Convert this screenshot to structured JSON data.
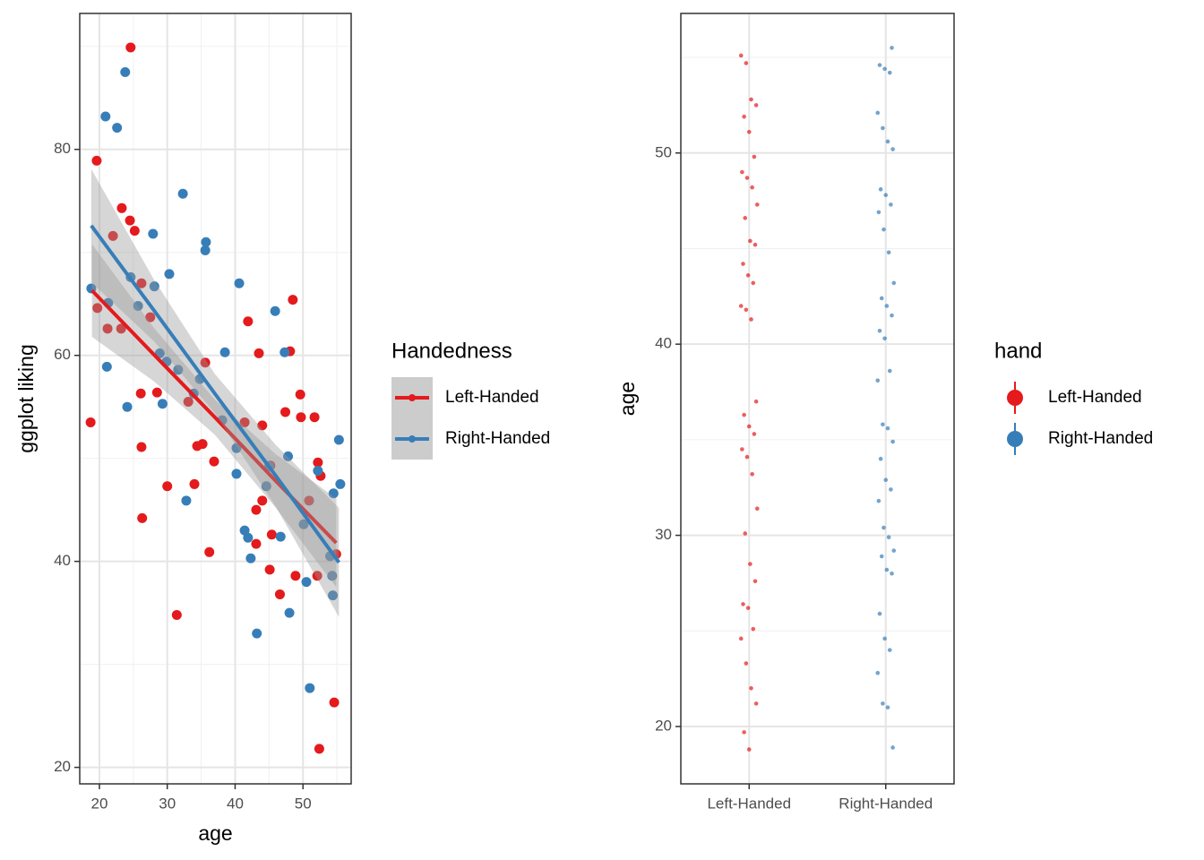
{
  "chart_data": [
    {
      "type": "scatter",
      "xlabel": "age",
      "ylabel": "ggplot liking",
      "xlim": [
        17.1,
        57.1
      ],
      "ylim": [
        18.4,
        93.2
      ],
      "xticks": [
        20,
        30,
        40,
        50
      ],
      "yticks": [
        20,
        40,
        60,
        80
      ],
      "minor_xticks": [
        25,
        35,
        45,
        55
      ],
      "minor_yticks": [
        30,
        50,
        70,
        90
      ],
      "legend_title": "Handedness",
      "series": [
        {
          "name": "Left-Handed",
          "color": "#e41a1c",
          "x": [
            18.7,
            19.6,
            19.7,
            21.2,
            22.0,
            23.2,
            23.3,
            24.5,
            24.6,
            25.2,
            26.1,
            26.2,
            26.2,
            26.3,
            27.5,
            28.5,
            30.0,
            31.4,
            33.1,
            34.0,
            34.4,
            35.2,
            35.6,
            36.2,
            36.9,
            41.4,
            41.9,
            43.1,
            43.1,
            43.5,
            44.0,
            44.0,
            45.1,
            45.2,
            45.4,
            46.6,
            47.4,
            48.1,
            48.5,
            48.9,
            49.6,
            49.7,
            50.9,
            51.7,
            52.1,
            52.2,
            52.4,
            52.6,
            54.6,
            54.9
          ],
          "y": [
            53.5,
            78.9,
            64.6,
            62.6,
            71.6,
            62.6,
            74.3,
            73.1,
            89.9,
            72.1,
            56.3,
            67.0,
            51.1,
            44.2,
            63.7,
            56.4,
            47.3,
            34.8,
            55.5,
            47.5,
            51.2,
            51.4,
            59.3,
            40.9,
            49.7,
            53.5,
            63.3,
            45.0,
            41.7,
            60.2,
            53.2,
            45.9,
            39.2,
            49.3,
            42.6,
            36.8,
            54.5,
            60.4,
            65.4,
            38.6,
            56.2,
            54.0,
            45.9,
            54.0,
            38.6,
            49.6,
            21.8,
            48.3,
            26.3,
            40.7
          ],
          "fit": {
            "x": [
              18.9,
              28,
              37,
              46,
              54.9
            ],
            "y": [
              66.3,
              60.1,
              54.0,
              47.8,
              41.8
            ],
            "lower": [
              61.8,
              57.5,
              52.3,
              45.2,
              37.5
            ],
            "upper": [
              70.8,
              62.7,
              55.7,
              50.4,
              46.1
            ]
          }
        },
        {
          "name": "Right-Handed",
          "color": "#377eb8",
          "x": [
            18.8,
            20.9,
            21.1,
            21.3,
            22.6,
            23.8,
            24.1,
            24.6,
            25.7,
            27.9,
            28.1,
            28.9,
            29.3,
            29.9,
            30.3,
            31.6,
            32.3,
            32.8,
            33.9,
            34.8,
            35.6,
            35.7,
            38.1,
            38.5,
            40.2,
            40.2,
            40.6,
            41.4,
            41.9,
            42.3,
            43.2,
            44.6,
            45.0,
            45.9,
            46.7,
            47.3,
            47.8,
            48.0,
            50.1,
            50.5,
            51.0,
            52.2,
            54.0,
            54.3,
            54.4,
            54.5,
            55.3,
            55.5
          ],
          "y": [
            66.5,
            83.2,
            58.9,
            65.1,
            82.1,
            87.5,
            55.0,
            67.6,
            64.8,
            71.8,
            66.7,
            60.2,
            55.3,
            59.4,
            67.9,
            58.6,
            75.7,
            45.9,
            56.3,
            57.7,
            70.2,
            71.0,
            53.7,
            60.3,
            48.5,
            51.0,
            67.0,
            43.0,
            42.3,
            40.3,
            33.0,
            47.3,
            49.2,
            64.3,
            42.4,
            60.3,
            50.2,
            35.0,
            43.6,
            38.0,
            27.7,
            48.8,
            40.5,
            38.6,
            36.7,
            46.6,
            51.8,
            47.5
          ],
          "fit": {
            "x": [
              18.8,
              28,
              37,
              46,
              55.3
            ],
            "y": [
              72.6,
              64.4,
              56.3,
              48.3,
              39.9
            ],
            "lower": [
              67.1,
              61.4,
              54.4,
              45.3,
              34.6
            ],
            "upper": [
              78.1,
              67.4,
              58.2,
              51.3,
              45.2
            ]
          }
        }
      ]
    },
    {
      "type": "strip",
      "ylabel": "age",
      "categories": [
        "Left-Handed",
        "Right-Handed"
      ],
      "ylim": [
        17.0,
        57.3
      ],
      "yticks": [
        20,
        30,
        40,
        50
      ],
      "minor_yticks": [
        25,
        35,
        45,
        55
      ],
      "legend_title": "hand",
      "series": [
        {
          "name": "Left-Handed",
          "color": "#e41a1c",
          "values": [
            55.1,
            54.7,
            52.8,
            52.5,
            51.9,
            51.1,
            49.8,
            49.0,
            48.7,
            48.2,
            47.3,
            46.6,
            45.4,
            45.2,
            44.2,
            43.6,
            43.2,
            42.0,
            41.8,
            41.3,
            37.0,
            36.3,
            35.7,
            35.3,
            34.5,
            34.1,
            33.2,
            31.4,
            30.1,
            28.5,
            27.6,
            26.4,
            26.2,
            25.1,
            24.6,
            23.3,
            22.0,
            21.2,
            19.7,
            18.8
          ]
        },
        {
          "name": "Right-Handed",
          "color": "#377eb8",
          "values": [
            55.5,
            54.6,
            54.4,
            54.2,
            52.1,
            51.3,
            50.6,
            50.2,
            48.1,
            47.8,
            47.3,
            46.9,
            46.0,
            44.8,
            43.2,
            42.4,
            42.0,
            41.5,
            40.7,
            40.3,
            38.6,
            38.1,
            35.8,
            35.6,
            34.9,
            34.0,
            32.9,
            32.4,
            31.8,
            30.4,
            29.9,
            29.2,
            28.9,
            28.2,
            28.0,
            25.9,
            24.6,
            24.0,
            22.8,
            21.2,
            21.0,
            18.9
          ]
        }
      ]
    }
  ]
}
